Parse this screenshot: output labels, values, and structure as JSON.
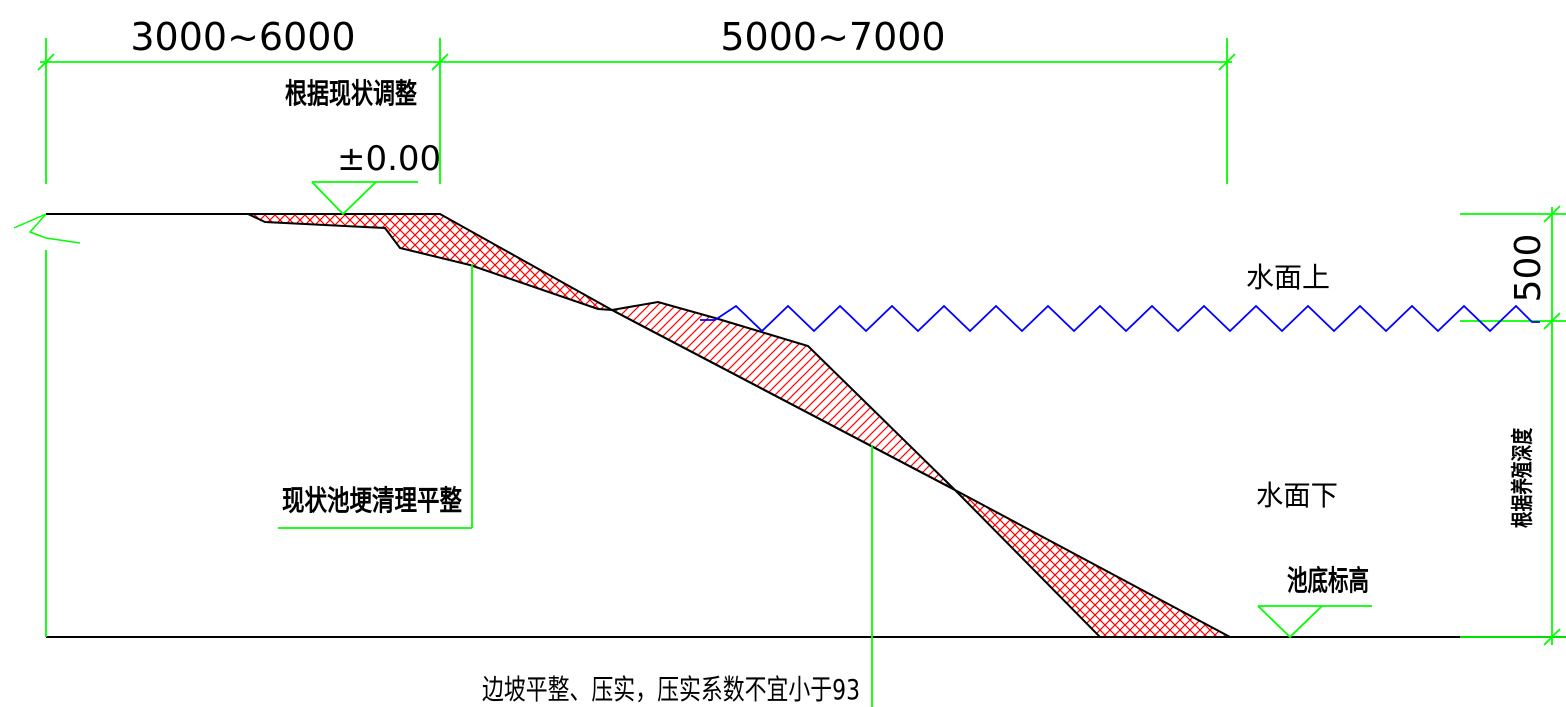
{
  "dimensions": {
    "top_left": "3000~6000",
    "top_right": "5000~7000",
    "right_upper": "500"
  },
  "labels": {
    "adjust_by_status": "根据现状调整",
    "elevation_zero": "±0.00",
    "above_water": "水面上",
    "below_water": "水面下",
    "clean_level": "现状池埂清理平整",
    "pond_bottom": "池底标高",
    "by_breeding_depth": "根据养殖深度",
    "slope_note": "边坡平整、压实，压实系数不宜小于93"
  },
  "colors": {
    "dimension_line": "#00ff00",
    "water_line": "#0000ff",
    "hatch": "#ff0000",
    "outline": "#000000"
  }
}
